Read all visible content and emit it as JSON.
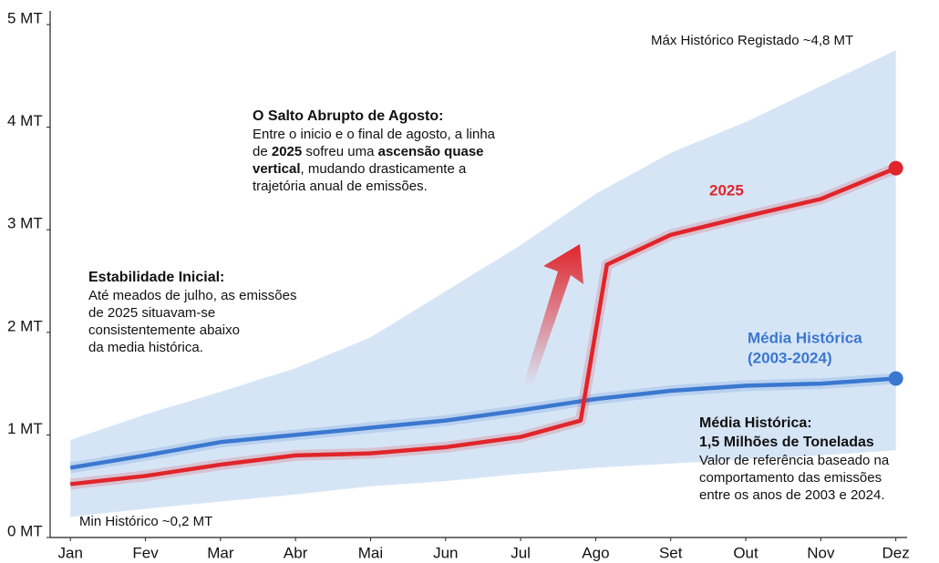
{
  "chart_data": {
    "type": "line",
    "ylim": [
      0,
      5
    ],
    "yticks": [
      {
        "value": 0,
        "label": "0 MT"
      },
      {
        "value": 1,
        "label": "1 MT"
      },
      {
        "value": 2,
        "label": "2 MT"
      },
      {
        "value": 3,
        "label": "3 MT"
      },
      {
        "value": 4,
        "label": "4 MT"
      },
      {
        "value": 5,
        "label": "5 MT"
      }
    ],
    "xlim": [
      0.73,
      12.15
    ],
    "xticks": [
      {
        "value": 1,
        "label": "Jan"
      },
      {
        "value": 2,
        "label": "Fev"
      },
      {
        "value": 3,
        "label": "Mar"
      },
      {
        "value": 4,
        "label": "Abr"
      },
      {
        "value": 5,
        "label": "Mai"
      },
      {
        "value": 6,
        "label": "Jun"
      },
      {
        "value": 7,
        "label": "Jul"
      },
      {
        "value": 8,
        "label": "Ago"
      },
      {
        "value": 9,
        "label": "Set"
      },
      {
        "value": 10,
        "label": "Out"
      },
      {
        "value": 11,
        "label": "Nov"
      },
      {
        "value": 12,
        "label": "Dez"
      }
    ],
    "band": {
      "color": "#cfe0f5",
      "x": [
        1,
        2,
        3,
        4,
        5,
        6,
        7,
        8,
        9,
        10,
        11,
        12
      ],
      "upper": [
        0.95,
        1.2,
        1.42,
        1.65,
        1.95,
        2.4,
        2.85,
        3.35,
        3.75,
        4.05,
        4.4,
        4.75
      ],
      "lower": [
        0.2,
        0.28,
        0.35,
        0.42,
        0.5,
        0.55,
        0.62,
        0.68,
        0.72,
        0.76,
        0.8,
        0.85
      ],
      "upper_label": "Máx Histórico Registado ~4,8 MT",
      "lower_label": "Min Histórico ~0,2 MT"
    },
    "series": [
      {
        "name": [
          "Média Histórica",
          "(2003-2024)"
        ],
        "color": "#3a78d0",
        "x": [
          1,
          2,
          3,
          4,
          5,
          6,
          7,
          8,
          9,
          10,
          11,
          12
        ],
        "values": [
          0.68,
          0.8,
          0.93,
          1.0,
          1.07,
          1.14,
          1.24,
          1.35,
          1.43,
          1.48,
          1.5,
          1.55
        ]
      },
      {
        "name": [
          "2025"
        ],
        "color": "#e0252b",
        "x": [
          1,
          2,
          3,
          4,
          5,
          6,
          7,
          7.8,
          8.15,
          9,
          10,
          11,
          12
        ],
        "values": [
          0.52,
          0.6,
          0.71,
          0.8,
          0.82,
          0.88,
          0.98,
          1.14,
          2.66,
          2.95,
          3.13,
          3.3,
          3.6
        ]
      }
    ],
    "annotations": [
      {
        "title": [
          "O Salto Abrupto de Agosto:"
        ],
        "lines": [
          [
            {
              "text": "Entre o inicio e o final de agosto, a linha"
            }
          ],
          [
            {
              "text": "de "
            },
            {
              "text": "2025",
              "bold": true
            },
            {
              "text": " sofreu uma "
            },
            {
              "text": "ascensão quase",
              "bold": true
            }
          ],
          [
            {
              "text": "vertical",
              "bold": true
            },
            {
              "text": ", mudando drasticamente a"
            }
          ],
          [
            {
              "text": "trajetória anual de emissões."
            }
          ]
        ]
      },
      {
        "title": [
          "Estabilidade Inicial:"
        ],
        "lines": [
          [
            {
              "text": "Até meados de julho, as emissões"
            }
          ],
          [
            {
              "text": "de 2025 situavam-se"
            }
          ],
          [
            {
              "text": "consistentemente abaixo"
            }
          ],
          [
            {
              "text": "da media histórica."
            }
          ]
        ]
      },
      {
        "title": [
          "Média Histórica:",
          "1,5 Milhões de Toneladas"
        ],
        "lines": [
          [
            {
              "text": "Valor de referência baseado na"
            }
          ],
          [
            {
              "text": "comportamento das emissões"
            }
          ],
          [
            {
              "text": "entre os anos de 2003 e 2024."
            }
          ]
        ]
      }
    ]
  }
}
